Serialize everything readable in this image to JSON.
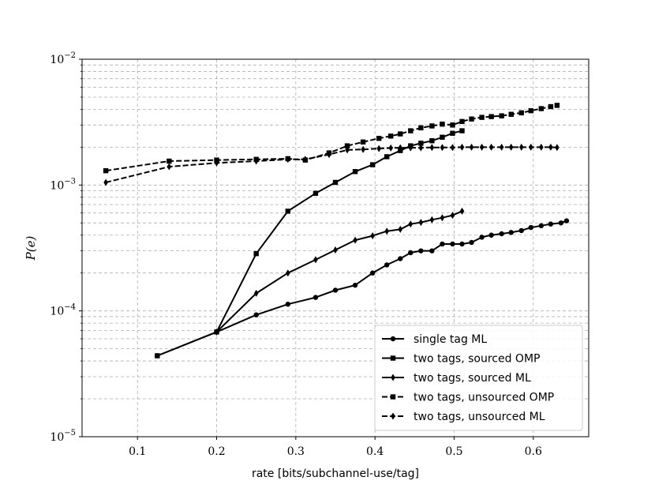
{
  "chart_data": {
    "type": "line",
    "xlabel": "rate [bits/subchannel-use/tag]",
    "ylabel": "P(e)",
    "yscale": "log",
    "xlim": [
      0.03,
      0.67
    ],
    "ylim": [
      1e-05,
      0.01
    ],
    "xticks": [
      0.1,
      0.2,
      0.3,
      0.4,
      0.5,
      0.6
    ],
    "xtick_labels": [
      "0.1",
      "0.2",
      "0.3",
      "0.4",
      "0.5",
      "0.6"
    ],
    "yticks": [
      {
        "value": 0.01,
        "base": "10",
        "exp": "−2"
      },
      {
        "value": 0.001,
        "base": "10",
        "exp": "−3"
      },
      {
        "value": 0.0001,
        "base": "10",
        "exp": "−4"
      },
      {
        "value": 1e-05,
        "base": "10",
        "exp": "−5"
      }
    ],
    "grid": true,
    "legend_position": "lower-right",
    "series": [
      {
        "name": "single tag ML",
        "marker": "circle",
        "linestyle": "solid",
        "x": [
          0.125,
          0.2,
          0.25,
          0.29,
          0.325,
          0.35,
          0.375,
          0.397,
          0.415,
          0.432,
          0.445,
          0.458,
          0.472,
          0.485,
          0.498,
          0.51,
          0.522,
          0.535,
          0.547,
          0.56,
          0.572,
          0.585,
          0.597,
          0.61,
          0.622,
          0.635,
          0.642
        ],
        "y": [
          4.4e-05,
          6.8e-05,
          9.3e-05,
          0.000113,
          0.000128,
          0.000146,
          0.00016,
          0.0002,
          0.000232,
          0.00026,
          0.00029,
          0.0003,
          0.0003,
          0.00034,
          0.00034,
          0.00034,
          0.00035,
          0.000385,
          0.0004,
          0.00041,
          0.00042,
          0.000435,
          0.00046,
          0.000475,
          0.00049,
          0.0005,
          0.00052
        ]
      },
      {
        "name": "two tags, sourced OMP",
        "marker": "square",
        "linestyle": "solid",
        "x": [
          0.125,
          0.2,
          0.25,
          0.29,
          0.325,
          0.35,
          0.375,
          0.397,
          0.415,
          0.432,
          0.445,
          0.458,
          0.472,
          0.485,
          0.498,
          0.51
        ],
        "y": [
          4.4e-05,
          6.8e-05,
          0.000285,
          0.00062,
          0.00086,
          0.00105,
          0.00128,
          0.00145,
          0.00168,
          0.00188,
          0.00205,
          0.00215,
          0.00225,
          0.0024,
          0.00258,
          0.0027
        ]
      },
      {
        "name": "two tags, sourced ML",
        "marker": "diamond",
        "linestyle": "solid",
        "x": [
          0.2,
          0.25,
          0.29,
          0.325,
          0.35,
          0.375,
          0.397,
          0.415,
          0.432,
          0.445,
          0.458,
          0.472,
          0.485,
          0.498,
          0.51
        ],
        "y": [
          6.8e-05,
          0.000138,
          0.0002,
          0.000255,
          0.000305,
          0.000365,
          0.000395,
          0.00043,
          0.000445,
          0.00049,
          0.000505,
          0.00053,
          0.00055,
          0.000575,
          0.00062
        ]
      },
      {
        "name": "two tags, unsourced OMP",
        "marker": "square",
        "linestyle": "dashed",
        "x": [
          0.06,
          0.14,
          0.2,
          0.25,
          0.29,
          0.312,
          0.342,
          0.365,
          0.385,
          0.405,
          0.42,
          0.432,
          0.445,
          0.458,
          0.472,
          0.485,
          0.498,
          0.51,
          0.522,
          0.535,
          0.547,
          0.56,
          0.572,
          0.585,
          0.597,
          0.61,
          0.622,
          0.63
        ],
        "y": [
          0.0013,
          0.00155,
          0.00158,
          0.0016,
          0.00162,
          0.00158,
          0.0018,
          0.00205,
          0.0022,
          0.00235,
          0.00245,
          0.00255,
          0.0027,
          0.00285,
          0.00295,
          0.00305,
          0.003,
          0.0032,
          0.00335,
          0.00345,
          0.0035,
          0.00355,
          0.00365,
          0.00375,
          0.0039,
          0.00405,
          0.0042,
          0.0043
        ]
      },
      {
        "name": "two tags, unsourced ML",
        "marker": "diamond",
        "linestyle": "dashed",
        "x": [
          0.06,
          0.14,
          0.2,
          0.25,
          0.29,
          0.312,
          0.342,
          0.365,
          0.385,
          0.405,
          0.42,
          0.432,
          0.445,
          0.458,
          0.472,
          0.485,
          0.498,
          0.51,
          0.522,
          0.535,
          0.547,
          0.56,
          0.572,
          0.585,
          0.597,
          0.61,
          0.622,
          0.63
        ],
        "y": [
          0.00105,
          0.0014,
          0.0015,
          0.00155,
          0.0016,
          0.0016,
          0.00175,
          0.0019,
          0.00192,
          0.00195,
          0.00197,
          0.00198,
          0.00198,
          0.00198,
          0.00199,
          0.00199,
          0.00199,
          0.002,
          0.002,
          0.002,
          0.002,
          0.002,
          0.002,
          0.002,
          0.002,
          0.002,
          0.002,
          0.00199
        ]
      }
    ]
  }
}
